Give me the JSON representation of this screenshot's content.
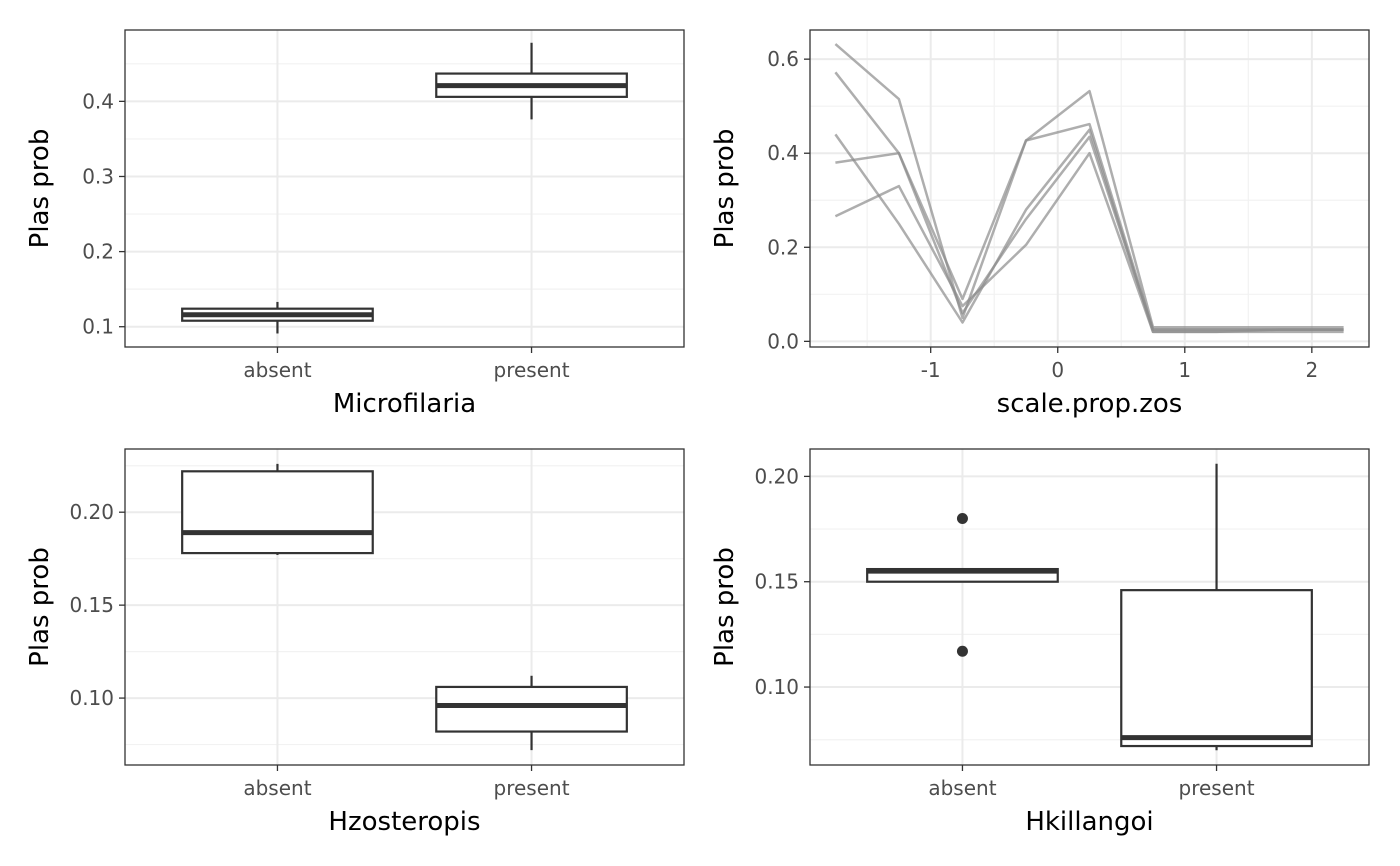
{
  "chart_data": [
    {
      "type": "boxplot",
      "xlabel": "Microfilaria",
      "ylabel": "Plas prob",
      "categories": [
        "absent",
        "present"
      ],
      "ylim": [
        0.073,
        0.495
      ],
      "yticks": [
        0.1,
        0.2,
        0.3,
        0.4
      ],
      "ytick_labels": [
        "0.1",
        "0.2",
        "0.3",
        "0.4"
      ],
      "boxes": [
        {
          "category": "absent",
          "whisker_low": 0.091,
          "q1": 0.108,
          "median": 0.116,
          "q3": 0.124,
          "whisker_high": 0.133,
          "outliers": []
        },
        {
          "category": "present",
          "whisker_low": 0.376,
          "q1": 0.406,
          "median": 0.421,
          "q3": 0.437,
          "whisker_high": 0.478,
          "outliers": []
        }
      ],
      "grid": true
    },
    {
      "type": "line",
      "xlabel": "scale.prop.zos",
      "ylabel": "Plas prob",
      "xlim": [
        -1.95,
        2.45
      ],
      "ylim": [
        -0.012,
        0.662
      ],
      "xticks": [
        -1,
        0,
        1,
        2
      ],
      "xtick_labels": [
        "-1",
        "0",
        "1",
        "2"
      ],
      "yticks": [
        0.0,
        0.2,
        0.4,
        0.6
      ],
      "ytick_labels": [
        "0.0",
        "0.2",
        "0.4",
        "0.6"
      ],
      "x": [
        -1.75,
        -1.25,
        -0.75,
        -0.25,
        0.25,
        0.75,
        1.25,
        1.75,
        2.25
      ],
      "series": [
        {
          "values": [
            0.632,
            0.515,
            0.05,
            0.427,
            0.462,
            0.025,
            0.025,
            0.025,
            0.025
          ]
        },
        {
          "values": [
            0.572,
            0.4,
            0.09,
            0.427,
            0.532,
            0.03,
            0.03,
            0.03,
            0.03
          ]
        },
        {
          "values": [
            0.44,
            0.25,
            0.04,
            0.28,
            0.45,
            0.02,
            0.02,
            0.025,
            0.025
          ]
        },
        {
          "values": [
            0.38,
            0.4,
            0.06,
            0.26,
            0.435,
            0.025,
            0.025,
            0.025,
            0.025
          ]
        },
        {
          "values": [
            0.266,
            0.33,
            0.075,
            0.205,
            0.4,
            0.02,
            0.02,
            0.02,
            0.02
          ]
        }
      ],
      "line_color": "#8c8c8c",
      "grid": true
    },
    {
      "type": "boxplot",
      "xlabel": "Hzosteropis",
      "ylabel": "Plas prob",
      "categories": [
        "absent",
        "present"
      ],
      "ylim": [
        0.064,
        0.234
      ],
      "yticks": [
        0.1,
        0.15,
        0.2
      ],
      "ytick_labels": [
        "0.10",
        "0.15",
        "0.20"
      ],
      "boxes": [
        {
          "category": "absent",
          "whisker_low": 0.177,
          "q1": 0.178,
          "median": 0.189,
          "q3": 0.222,
          "whisker_high": 0.226,
          "outliers": []
        },
        {
          "category": "present",
          "whisker_low": 0.072,
          "q1": 0.082,
          "median": 0.096,
          "q3": 0.106,
          "whisker_high": 0.112,
          "outliers": []
        }
      ],
      "grid": true
    },
    {
      "type": "boxplot",
      "xlabel": "Hkillangoi",
      "ylabel": "Plas prob",
      "categories": [
        "absent",
        "present"
      ],
      "ylim": [
        0.063,
        0.213
      ],
      "yticks": [
        0.1,
        0.15,
        0.2
      ],
      "ytick_labels": [
        "0.10",
        "0.15",
        "0.20"
      ],
      "boxes": [
        {
          "category": "absent",
          "whisker_low": 0.15,
          "q1": 0.15,
          "median": 0.155,
          "q3": 0.156,
          "whisker_high": 0.156,
          "outliers": [
            0.18,
            0.117
          ]
        },
        {
          "category": "present",
          "whisker_low": 0.07,
          "q1": 0.072,
          "median": 0.076,
          "q3": 0.146,
          "whisker_high": 0.206,
          "outliers": []
        }
      ],
      "grid": true
    }
  ]
}
